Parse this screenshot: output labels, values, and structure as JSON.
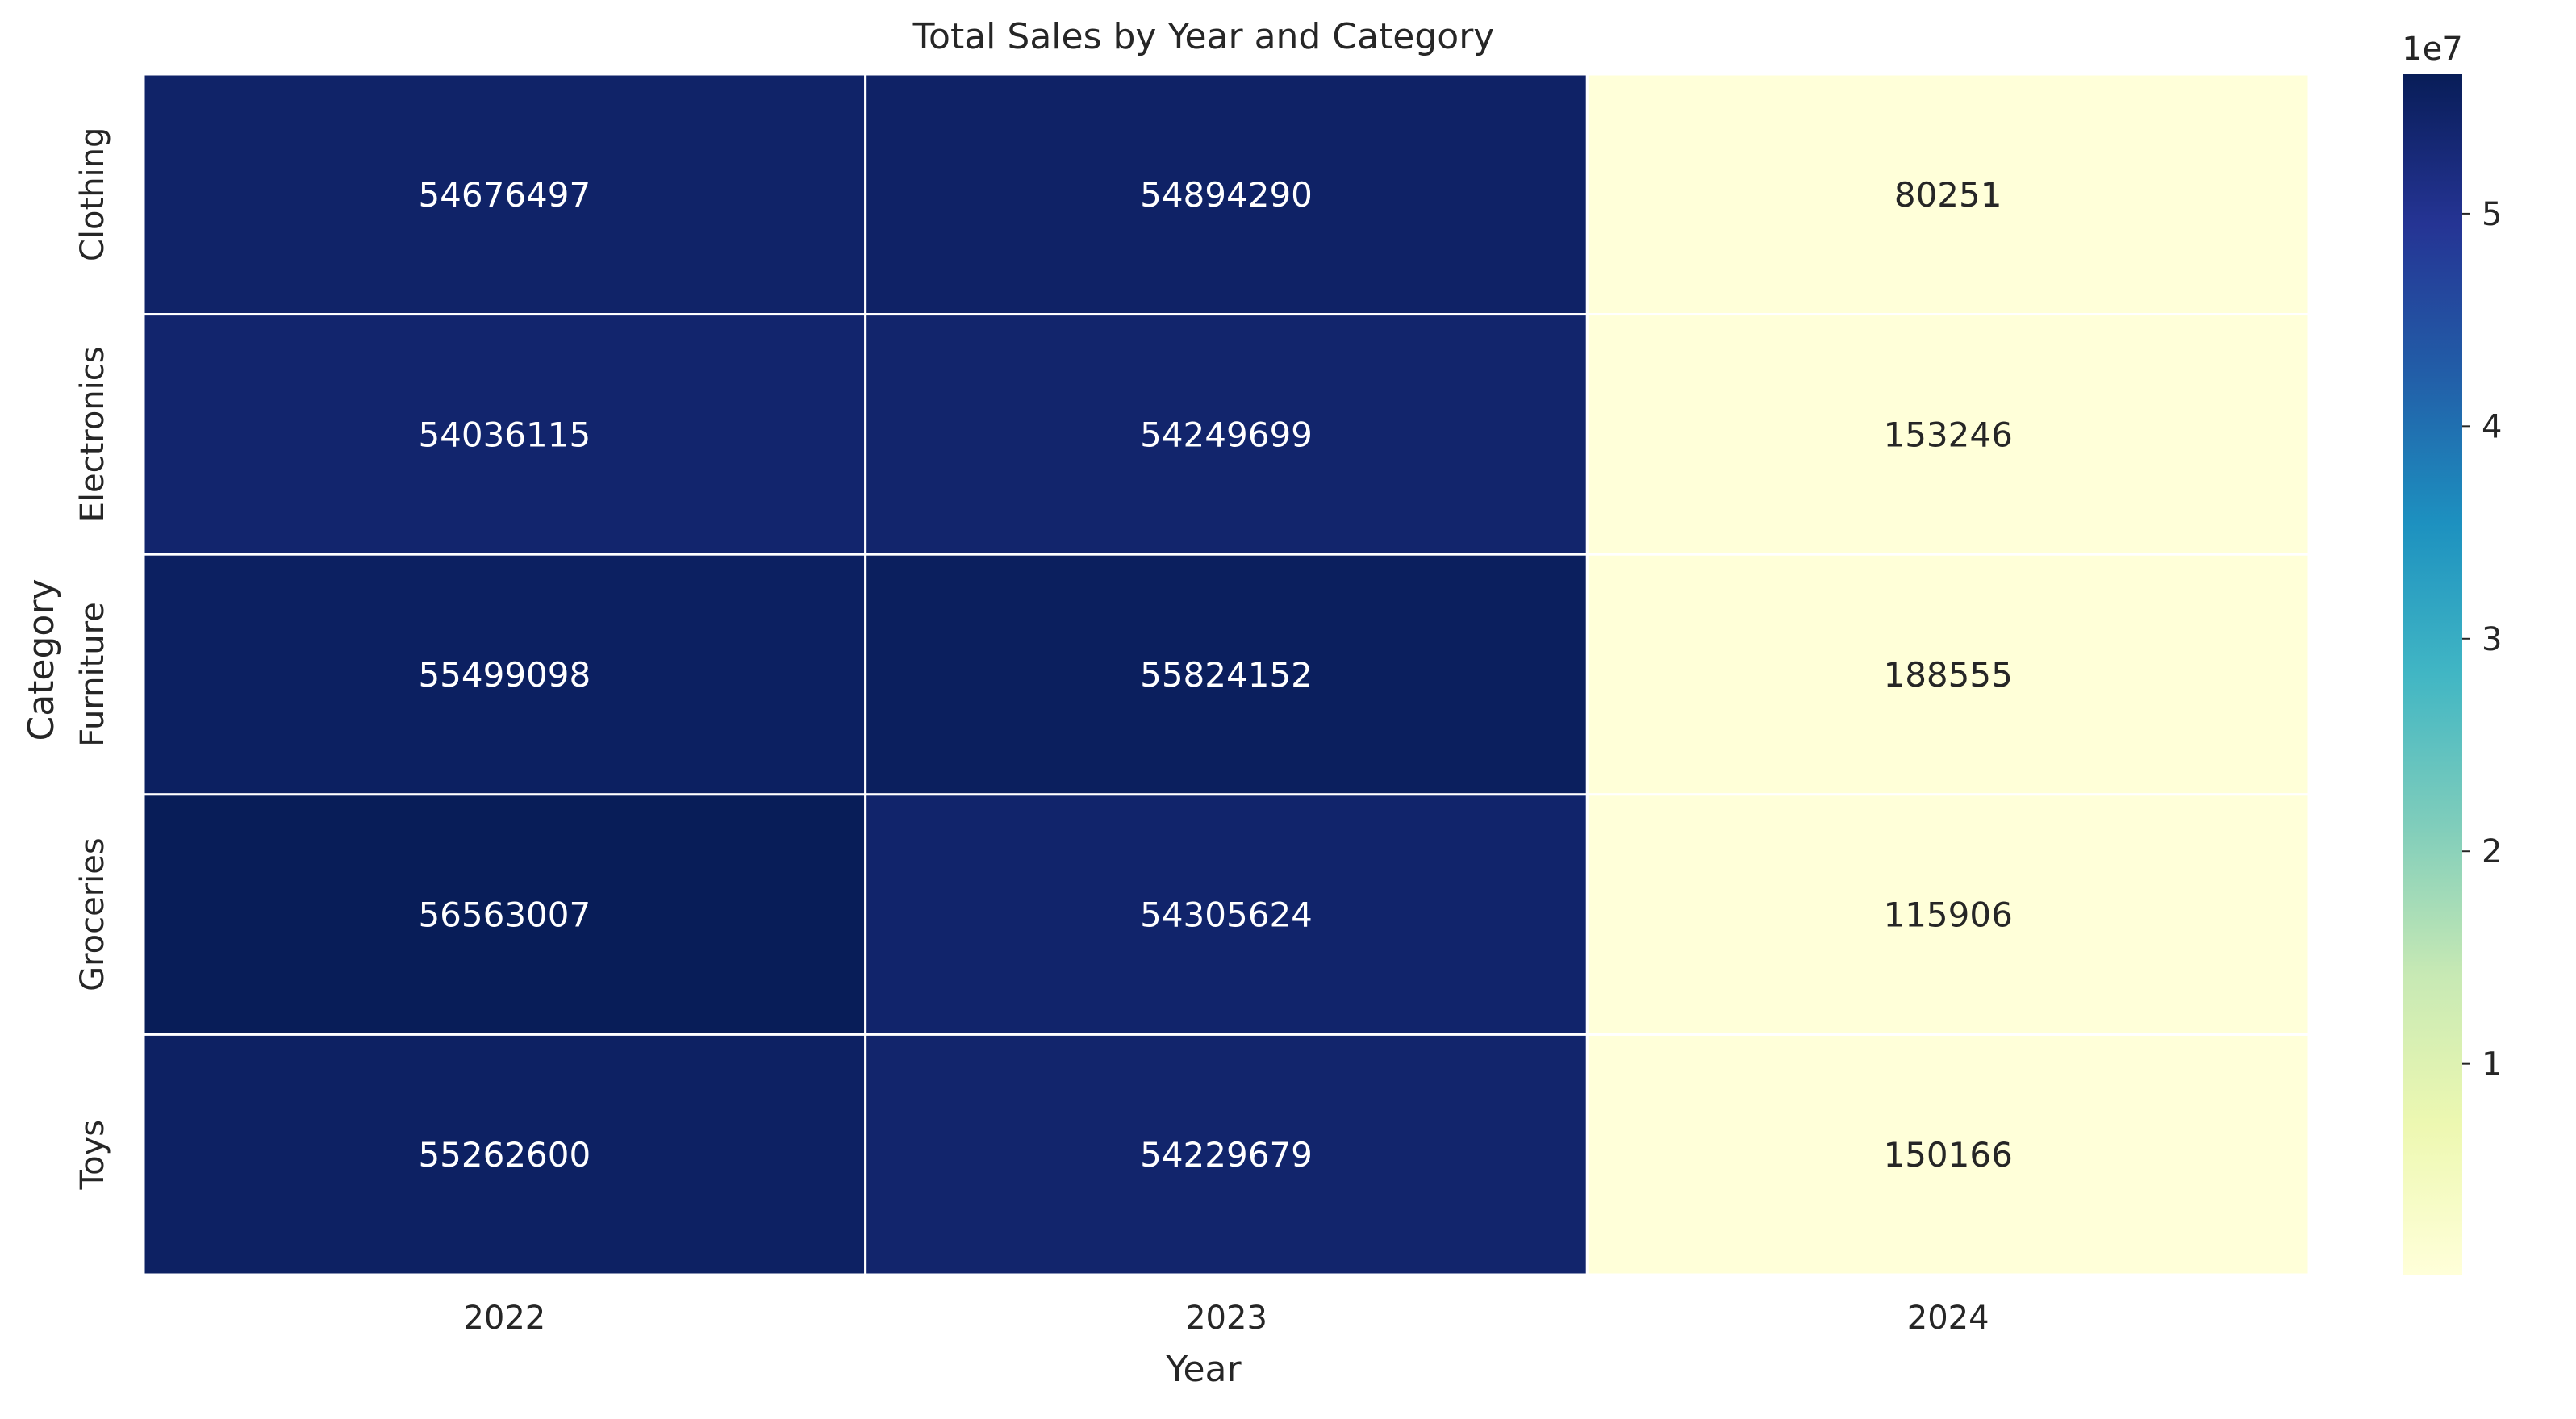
{
  "chart_data": {
    "type": "heatmap",
    "title": "Total Sales by Year and Category",
    "xlabel": "Year",
    "ylabel": "Category",
    "x_categories": [
      "2022",
      "2023",
      "2024"
    ],
    "y_categories": [
      "Clothing",
      "Electronics",
      "Furniture",
      "Groceries",
      "Toys"
    ],
    "values": [
      [
        54676497,
        54894290,
        80251
      ],
      [
        54036115,
        54249699,
        153246
      ],
      [
        55499098,
        55824152,
        188555
      ],
      [
        56563007,
        54305624,
        115906
      ],
      [
        55262600,
        54229679,
        150166
      ]
    ],
    "annotations": [
      [
        "54676497",
        "54894290",
        "80251"
      ],
      [
        "54036115",
        "54249699",
        "153246"
      ],
      [
        "55499098",
        "55824152",
        "188555"
      ],
      [
        "56563007",
        "54305624",
        "115906"
      ],
      [
        "55262600",
        "54229679",
        "150166"
      ]
    ],
    "colormap": "YlGnBu",
    "colorbar": {
      "multiplier_label": "1e7",
      "scale": 10000000,
      "ticks": [
        1,
        2,
        3,
        4,
        5
      ],
      "vmin": 80251,
      "vmax": 56563007
    },
    "grid": false,
    "cell_separator_color": "#ffffff",
    "colormap_stops": [
      "#ffffd9",
      "#edf8b1",
      "#c7e9b4",
      "#7fcdbb",
      "#41b6c4",
      "#1d91c0",
      "#225ea8",
      "#253494",
      "#081d58"
    ]
  }
}
